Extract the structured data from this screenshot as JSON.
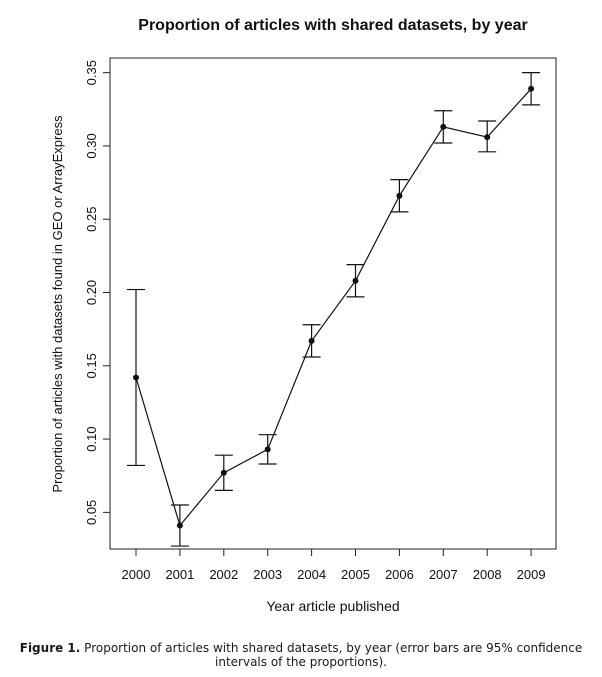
{
  "chart_data": {
    "type": "line",
    "title": "Proportion of articles with shared datasets, by year",
    "xlabel": "Year article published",
    "ylabel": "Proportion of articles with datasets found in GEO or ArrayExpress",
    "categories": [
      "2000",
      "2001",
      "2002",
      "2003",
      "2004",
      "2005",
      "2006",
      "2007",
      "2008",
      "2009"
    ],
    "series": [
      {
        "values": [
          0.142,
          0.041,
          0.077,
          0.093,
          0.167,
          0.208,
          0.266,
          0.313,
          0.306,
          0.339
        ],
        "lower": [
          0.082,
          0.027,
          0.065,
          0.083,
          0.156,
          0.197,
          0.255,
          0.302,
          0.296,
          0.328
        ],
        "upper": [
          0.202,
          0.055,
          0.089,
          0.103,
          0.178,
          0.219,
          0.277,
          0.324,
          0.317,
          0.35
        ]
      }
    ],
    "ylim": [
      0.025,
      0.36
    ],
    "yticks": [
      "0.05",
      "0.10",
      "0.15",
      "0.20",
      "0.25",
      "0.30",
      "0.35"
    ],
    "error_bars": "95% confidence intervals",
    "grid": false,
    "legend": "none"
  },
  "caption": {
    "label": "Figure 1.",
    "text": "Proportion of articles with shared datasets, by year (error bars are 95% confidence intervals of the proportions)."
  }
}
